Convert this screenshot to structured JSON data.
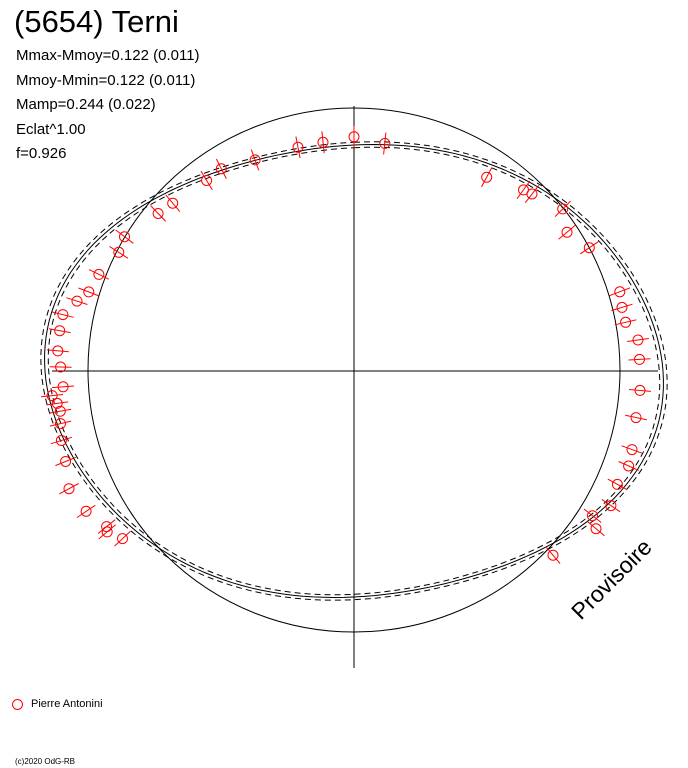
{
  "title": "(5654) Terni",
  "stats": [
    "Mmax-Mmoy=0.122 (0.011)",
    "Mmoy-Mmin=0.122 (0.011)",
    "Mamp=0.244 (0.022)",
    "Eclat^1.00",
    "f=0.926"
  ],
  "watermark": "Provisoire",
  "legend": {
    "label": "Pierre Antonini",
    "color": "#ff0000"
  },
  "copyright": "(c)2020 OdG-RB",
  "chart_data": {
    "type": "scatter",
    "coordinate_system": "polar",
    "title": "(5654) Terni",
    "series": [
      {
        "name": "Pierre Antonini",
        "color": "#ff0000",
        "marker": "circle",
        "points_degrees_brightness": [
          [
            6,
            0.982
          ],
          [
            0,
            1.005
          ],
          [
            -6,
            0.987
          ],
          [
            -11,
            0.978
          ],
          [
            -20,
            0.964
          ],
          [
            -27,
            0.974
          ],
          [
            -31,
            0.954
          ],
          [
            -40,
            0.94
          ],
          [
            -44,
            0.94
          ],
          [
            -53,
            0.958
          ],
          [
            -57,
            0.935
          ],
          [
            -64,
            0.946
          ],
          [
            -69,
            0.947
          ],
          [
            -72,
            0.971
          ],
          [
            -76,
            1.0
          ],
          [
            -80,
            0.996
          ],
          [
            -85,
            0.991
          ],
          [
            -89,
            0.978
          ],
          [
            -94,
            0.972
          ],
          [
            -98,
            0.999
          ],
          [
            -103,
            1.004
          ],
          [
            -107,
            1.02
          ],
          [
            -112,
            1.037
          ],
          [
            -118,
            1.076
          ],
          [
            -124,
            1.077
          ],
          [
            -129,
            1.061
          ],
          [
            -133,
            1.055
          ],
          [
            -96,
            1.012
          ],
          [
            -100,
            0.994
          ],
          [
            -130,
            1.074
          ],
          [
            56,
            0.946
          ],
          [
            50,
            0.927
          ],
          [
            45,
            0.984
          ],
          [
            36,
            0.961
          ],
          [
            28,
            0.942
          ],
          [
            69,
            0.949
          ],
          [
            73,
            0.934
          ],
          [
            77,
            0.929
          ],
          [
            82,
            0.956
          ],
          [
            87,
            0.953
          ],
          [
            95,
            0.957
          ],
          [
            102,
            0.961
          ],
          [
            110,
            0.986
          ],
          [
            114,
            1.002
          ],
          [
            119,
            1.004
          ],
          [
            124,
            1.033
          ],
          [
            128,
            1.009
          ],
          [
            130,
            1.053
          ],
          [
            140,
            1.032
          ],
          [
            38,
            0.964
          ]
        ]
      }
    ],
    "model_curves": [
      "reference circle",
      "fitted curve",
      "upper bound",
      "lower bound"
    ],
    "grid": false,
    "legend_position": "bottom-left"
  }
}
